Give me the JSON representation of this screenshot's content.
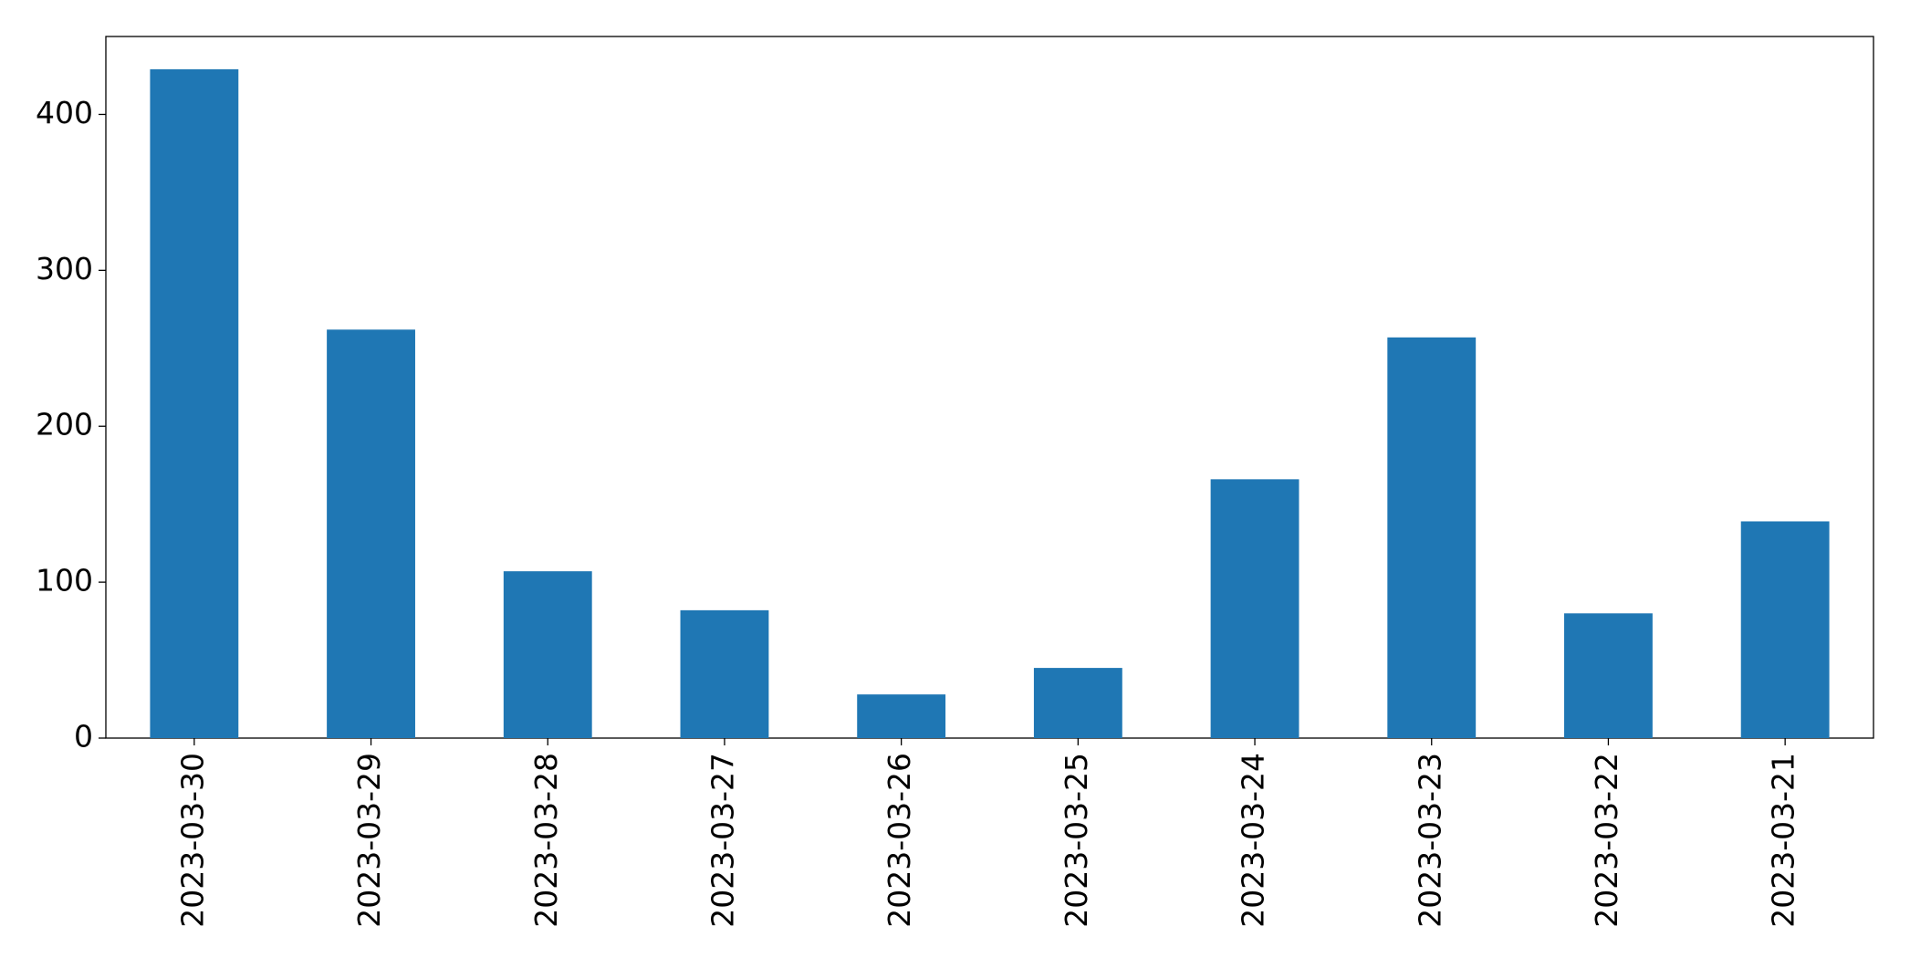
{
  "chart_data": {
    "type": "bar",
    "categories": [
      "2023-03-30",
      "2023-03-29",
      "2023-03-28",
      "2023-03-27",
      "2023-03-26",
      "2023-03-25",
      "2023-03-24",
      "2023-03-23",
      "2023-03-22",
      "2023-03-21"
    ],
    "values": [
      429,
      262,
      107,
      82,
      28,
      45,
      166,
      257,
      80,
      139
    ],
    "color": "#1f77b4",
    "ylim": [
      0,
      450
    ],
    "yticks": [
      0,
      100,
      200,
      300,
      400
    ],
    "grid": false
  }
}
